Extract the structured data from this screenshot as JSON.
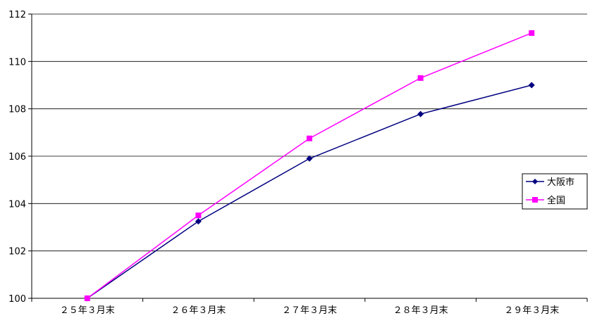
{
  "chart_data": {
    "type": "line",
    "categories": [
      "２５年３月末",
      "２６年３月末",
      "２７年３月末",
      "２８年３月末",
      "２９年３月末"
    ],
    "series": [
      {
        "name": "大阪市",
        "values": [
          100,
          103.25,
          105.9,
          107.78,
          109.0
        ],
        "color": "#000080",
        "marker": "diamond"
      },
      {
        "name": "全国",
        "values": [
          100,
          103.5,
          106.75,
          109.3,
          111.2
        ],
        "color": "#ff00ff",
        "marker": "square"
      }
    ],
    "title": "",
    "xlabel": "",
    "ylabel": "",
    "ylim": [
      100,
      112
    ],
    "yticks": [
      100,
      102,
      104,
      106,
      108,
      110,
      112
    ],
    "ytick_labels": [
      "100",
      "102",
      "104",
      "106",
      "108",
      "110",
      "112"
    ],
    "grid": true,
    "legend_position": "right"
  }
}
